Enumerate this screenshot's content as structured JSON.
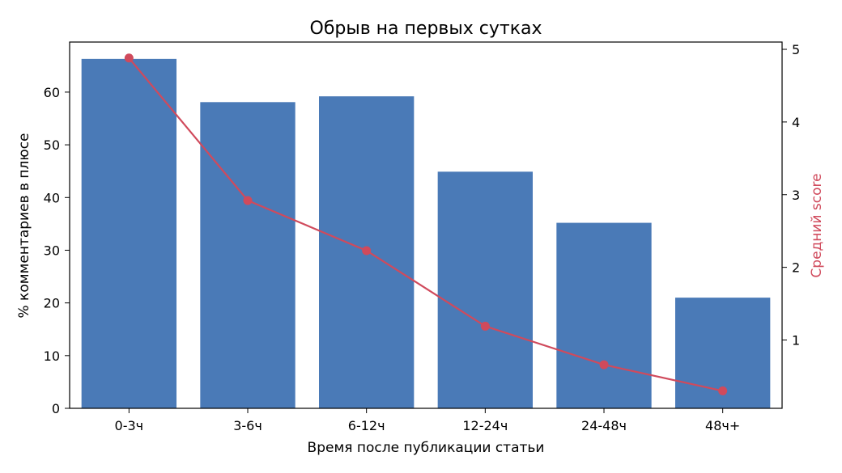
{
  "chart_data": {
    "type": "bar",
    "title": "Обрыв на первых сутках",
    "xlabel": "Время после публикации статьи",
    "ylabel": "% комментариев в плюсе",
    "y2label": "Средний score",
    "categories": [
      "0-3ч",
      "3-6ч",
      "6-12ч",
      "12-24ч",
      "24-48ч",
      "48ч+"
    ],
    "ylim": [
      0,
      69.5
    ],
    "y2lim": [
      0.06,
      5.1
    ],
    "yticks": [
      0,
      10,
      20,
      30,
      40,
      50,
      60
    ],
    "y2ticks": [
      1,
      2,
      3,
      4,
      5
    ],
    "series": [
      {
        "kind": "bar",
        "axis": "left",
        "color": "#4a7ab7",
        "values": [
          66.3,
          58.1,
          59.2,
          44.9,
          35.2,
          21.0
        ]
      },
      {
        "kind": "line",
        "axis": "right",
        "color": "#d04a5c",
        "marker": "circle",
        "values": [
          4.88,
          2.92,
          2.23,
          1.19,
          0.66,
          0.3
        ]
      }
    ],
    "grid": false
  }
}
